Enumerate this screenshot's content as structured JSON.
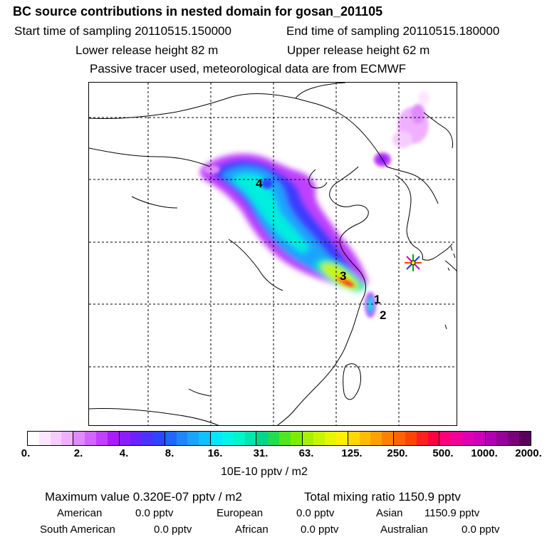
{
  "header": {
    "title": "BC  source contributions in nested domain for gosan_201105",
    "start_time": "Start time of sampling 20110515.150000",
    "end_time": "End time of sampling 20110515.180000",
    "lower_release": "Lower release height   82 m",
    "upper_release": "Upper release height   62 m",
    "tracer_note": "Passive tracer used, meteorological data are from ECMWF"
  },
  "map": {
    "labels": [
      "1",
      "2",
      "3",
      "4"
    ],
    "receptor_marker": "star-icon"
  },
  "colorbar": {
    "ticks": [
      "0.",
      "2.",
      "4.",
      "8.",
      "16.",
      "31.",
      "63.",
      "125.",
      "250.",
      "500.",
      "1000.",
      "2000."
    ],
    "unit": "10E-10 pptv / m2",
    "colors": [
      [
        "#ffffff",
        "#fbe6ff",
        "#f6ccff",
        "#f0b0ff"
      ],
      [
        "#e08aff",
        "#d066ff",
        "#c040ff",
        "#a81cff"
      ],
      [
        "#8c1cff",
        "#6a22ff",
        "#4a33ff",
        "#2f45ff"
      ],
      [
        "#2266ff",
        "#1f86ff",
        "#1aa3ff",
        "#10c0ff"
      ],
      [
        "#00e8ff",
        "#00f5e6",
        "#00f5c8",
        "#00e6b0"
      ],
      [
        "#00d68a",
        "#1fdc50",
        "#50e61e",
        "#7ded00"
      ],
      [
        "#a6f000",
        "#c8f500",
        "#e6f500",
        "#fff000"
      ],
      [
        "#ffd700",
        "#ffbc00",
        "#ffa000",
        "#ff8000"
      ],
      [
        "#ff6200",
        "#ff4400",
        "#ff2020",
        "#ff0040"
      ],
      [
        "#ff0078",
        "#f2009a",
        "#e000b0",
        "#cc00b8"
      ],
      [
        "#b000b0",
        "#960096",
        "#7a007a",
        "#5a005a"
      ]
    ]
  },
  "stats": {
    "max_label": "Maximum value  0.320E-07 pptv / m2",
    "total_label": "Total mixing ratio     1150.9 pptv",
    "regions": [
      {
        "name": "American",
        "value": "0.0 pptv"
      },
      {
        "name": "European",
        "value": "0.0 pptv"
      },
      {
        "name": "Asian",
        "value": "1150.9 pptv"
      },
      {
        "name": "South American",
        "value": "0.0 pptv"
      },
      {
        "name": "African",
        "value": "0.0 pptv"
      },
      {
        "name": "Australian",
        "value": "0.0 pptv"
      }
    ]
  }
}
